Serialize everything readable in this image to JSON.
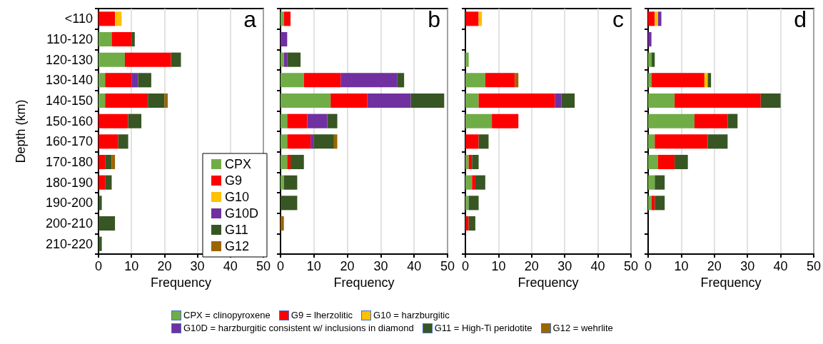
{
  "chart_data": [
    {
      "type": "bar",
      "orientation": "horizontal",
      "stacked": true,
      "title": "a",
      "xlabel": "Frequency",
      "ylabel": "Depth (km)",
      "categories": [
        "<110",
        "110-120",
        "120-130",
        "130-140",
        "140-150",
        "150-160",
        "160-170",
        "170-180",
        "180-190",
        "190-200",
        "200-210",
        "210-220"
      ],
      "xlim": [
        0,
        50
      ],
      "xticks": [
        0,
        10,
        20,
        30,
        40,
        50
      ],
      "grid": "x",
      "legend": "bottom right",
      "series": [
        {
          "name": "CPX",
          "color": "#70ad47",
          "values": [
            0,
            4,
            8,
            2,
            2,
            0,
            0,
            0,
            0,
            0,
            0,
            0
          ]
        },
        {
          "name": "G9",
          "color": "#ff0000",
          "values": [
            5,
            6,
            14,
            8,
            13,
            9,
            6,
            2,
            2,
            0,
            0,
            0
          ]
        },
        {
          "name": "G10",
          "color": "#ffc000",
          "values": [
            2,
            0,
            0,
            0,
            0,
            0,
            0,
            0,
            0,
            0,
            0,
            0
          ]
        },
        {
          "name": "G10D",
          "color": "#7030a0",
          "values": [
            0,
            0,
            0,
            2,
            0,
            0,
            0,
            0,
            0,
            0,
            0,
            0
          ]
        },
        {
          "name": "G11",
          "color": "#375623",
          "values": [
            0,
            1,
            3,
            4,
            5,
            4,
            3,
            2,
            2,
            1,
            5,
            1
          ]
        },
        {
          "name": "G12",
          "color": "#9c6500",
          "values": [
            0,
            0,
            0,
            0,
            1,
            0,
            0,
            1,
            0,
            0,
            0,
            0
          ]
        }
      ]
    },
    {
      "type": "bar",
      "orientation": "horizontal",
      "stacked": true,
      "title": "b",
      "xlabel": "Frequency",
      "categories": [
        null,
        null,
        null,
        null,
        null,
        null,
        null,
        null,
        null,
        null,
        null,
        null
      ],
      "xlim": [
        0,
        50
      ],
      "xticks": [
        0,
        10,
        20,
        30,
        40,
        50
      ],
      "grid": "x",
      "tick_labels": "x",
      "series": [
        {
          "color": "#70ad47",
          "values": [
            1,
            0,
            1,
            7,
            15,
            2,
            2,
            2,
            1,
            0,
            0,
            0
          ]
        },
        {
          "color": "#ff0000",
          "values": [
            2,
            0,
            0,
            11,
            11,
            6,
            7,
            1,
            0,
            0,
            0,
            0
          ]
        },
        {
          "color": "#ffc000",
          "values": [
            0,
            0,
            0,
            0,
            0,
            0,
            0,
            0,
            0,
            0,
            0,
            0
          ]
        },
        {
          "color": "#7030a0",
          "values": [
            0,
            2,
            1,
            17,
            13,
            6,
            1,
            0,
            0,
            0,
            0,
            0
          ]
        },
        {
          "color": "#375623",
          "values": [
            0,
            0,
            4,
            2,
            10,
            3,
            6,
            4,
            4,
            5,
            0,
            0
          ]
        },
        {
          "color": "#9c6500",
          "values": [
            0,
            0,
            0,
            0,
            0,
            0,
            1,
            0,
            0,
            0,
            1,
            0
          ]
        }
      ]
    },
    {
      "type": "bar",
      "orientation": "horizontal",
      "stacked": true,
      "title": "c",
      "xlabel": "Frequency",
      "categories": [
        null,
        null,
        null,
        null,
        null,
        null,
        null,
        null,
        null,
        null,
        null,
        null
      ],
      "xlim": [
        0,
        50
      ],
      "xticks": [
        0,
        10,
        20,
        30,
        40,
        50
      ],
      "grid": "x",
      "tick_labels": "x",
      "series": [
        {
          "color": "#70ad47",
          "values": [
            0,
            0,
            1,
            6,
            4,
            8,
            0,
            1,
            2,
            1,
            0,
            0
          ]
        },
        {
          "color": "#ff0000",
          "values": [
            4,
            0,
            0,
            9,
            23,
            8,
            4,
            1,
            1,
            0,
            1,
            0
          ]
        },
        {
          "color": "#ffc000",
          "values": [
            1,
            0,
            0,
            0,
            0,
            0,
            0,
            0,
            0,
            0,
            0,
            0
          ]
        },
        {
          "color": "#7030a0",
          "values": [
            0,
            0,
            0,
            0,
            2,
            0,
            0,
            0,
            0,
            0,
            0,
            0
          ]
        },
        {
          "color": "#375623",
          "values": [
            0,
            0,
            0,
            0,
            4,
            0,
            3,
            2,
            3,
            3,
            2,
            0
          ]
        },
        {
          "color": "#9c6500",
          "values": [
            0,
            0,
            0,
            1,
            0,
            0,
            0,
            0,
            0,
            0,
            0,
            0
          ]
        }
      ]
    },
    {
      "type": "bar",
      "orientation": "horizontal",
      "stacked": true,
      "title": "d",
      "xlabel": "Frequency",
      "categories": [
        null,
        null,
        null,
        null,
        null,
        null,
        null,
        null,
        null,
        null,
        null,
        null
      ],
      "xlim": [
        0,
        50
      ],
      "xticks": [
        0,
        10,
        20,
        30,
        40,
        50
      ],
      "grid": "x",
      "tick_labels": "x",
      "legend": "bottom",
      "series": [
        {
          "name": "CPX = clinopyroxene",
          "color": "#70ad47",
          "values": [
            0,
            0,
            1,
            1,
            8,
            14,
            2,
            3,
            2,
            1,
            0,
            0
          ]
        },
        {
          "name": "G9 = lherzolitic",
          "color": "#ff0000",
          "values": [
            2,
            0,
            0,
            16,
            26,
            10,
            16,
            5,
            0,
            1,
            0,
            0
          ]
        },
        {
          "name": "G10 = harzburgitic",
          "color": "#ffc000",
          "values": [
            1,
            0,
            0,
            1,
            0,
            0,
            0,
            0,
            0,
            0,
            0,
            0
          ]
        },
        {
          "name": "G10D = harzburgitic consistent w/ inclusions in diamond",
          "color": "#7030a0",
          "values": [
            1,
            1,
            0,
            0,
            0,
            0,
            0,
            0,
            0,
            0,
            0,
            0
          ]
        },
        {
          "name": "G11 = High-Ti peridotite",
          "color": "#375623",
          "values": [
            0,
            0,
            1,
            1,
            6,
            3,
            6,
            4,
            3,
            3,
            0,
            0
          ]
        },
        {
          "name": "G12 = wehrlite",
          "color": "#9c6500",
          "values": [
            0,
            0,
            0,
            0,
            0,
            0,
            0,
            0,
            0,
            0,
            0,
            0
          ]
        }
      ]
    }
  ]
}
